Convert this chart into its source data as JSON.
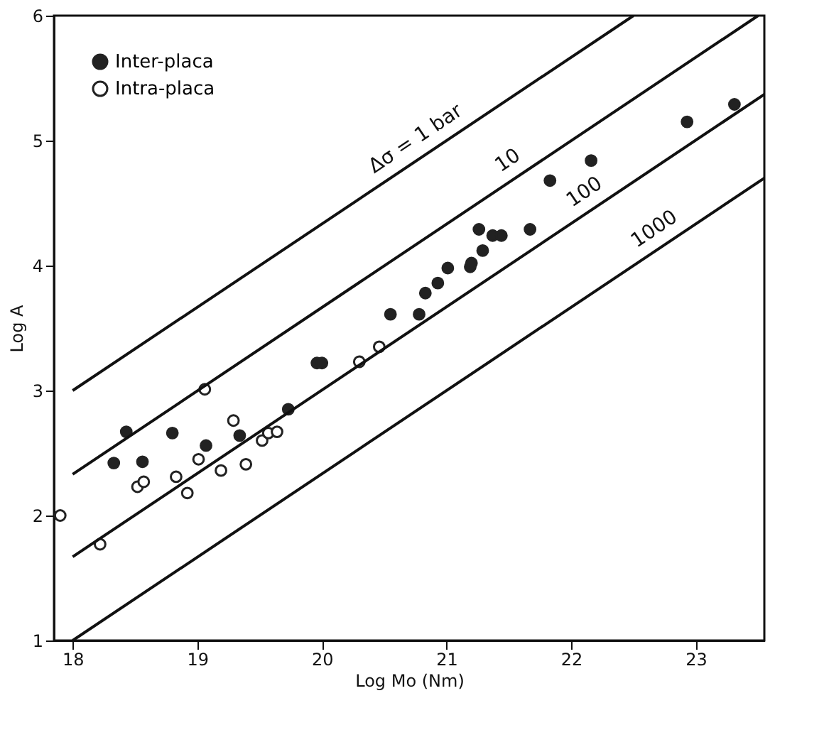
{
  "chart_data": {
    "type": "scatter",
    "xlabel": "Log Mo (Nm)",
    "ylabel": "Log A",
    "xlim": [
      17.85,
      23.55
    ],
    "ylim": [
      1,
      6
    ],
    "xticks": [
      18,
      19,
      20,
      21,
      22,
      23
    ],
    "yticks": [
      1,
      2,
      3,
      4,
      5,
      6
    ],
    "grid": false,
    "legend": "top left",
    "series": [
      {
        "name": "Inter-placa",
        "color": "#222222",
        "marker": "circle",
        "x": [
          18.33,
          18.43,
          18.56,
          18.8,
          19.07,
          19.34,
          19.73,
          19.96,
          20.0,
          20.55,
          20.78,
          20.83,
          20.93,
          21.01,
          21.19,
          21.2,
          21.26,
          21.29,
          21.37,
          21.44,
          21.67,
          21.83,
          22.16,
          22.93,
          23.31
        ],
        "values": [
          2.42,
          2.67,
          2.43,
          2.66,
          2.56,
          2.64,
          2.85,
          3.22,
          3.22,
          3.61,
          3.61,
          3.78,
          3.86,
          3.98,
          3.99,
          4.02,
          4.29,
          4.12,
          4.24,
          4.24,
          4.29,
          4.68,
          4.84,
          5.15,
          5.29
        ]
      },
      {
        "name": "Intra-placa",
        "color": "#222222",
        "marker": "circle-open",
        "x": [
          17.9,
          18.22,
          18.52,
          18.57,
          18.83,
          18.92,
          19.01,
          19.06,
          19.19,
          19.29,
          19.39,
          19.52,
          19.57,
          19.64,
          20.3,
          20.46
        ],
        "values": [
          2.0,
          1.77,
          2.23,
          2.27,
          2.31,
          2.18,
          2.45,
          3.01,
          2.36,
          2.76,
          2.41,
          2.6,
          2.66,
          2.67,
          3.23,
          3.35
        ]
      },
      {
        "type": "line",
        "color": "#111111",
        "marker": "none",
        "x": [
          18,
          22.5
        ],
        "values": [
          3,
          6
        ]
      },
      {
        "type": "line",
        "color": "#111111",
        "marker": "none",
        "x": [
          18,
          23.5
        ],
        "values": [
          2.33,
          6
        ]
      },
      {
        "type": "line",
        "color": "#111111",
        "marker": "none",
        "x": [
          18,
          23.55
        ],
        "values": [
          1.67,
          5.37
        ]
      },
      {
        "type": "line",
        "color": "#111111",
        "marker": "none",
        "x": [
          18,
          23.55
        ],
        "values": [
          1,
          4.7
        ]
      }
    ],
    "annotations": [
      "Δσ = 1 bar",
      "10",
      "100",
      "1000"
    ]
  }
}
